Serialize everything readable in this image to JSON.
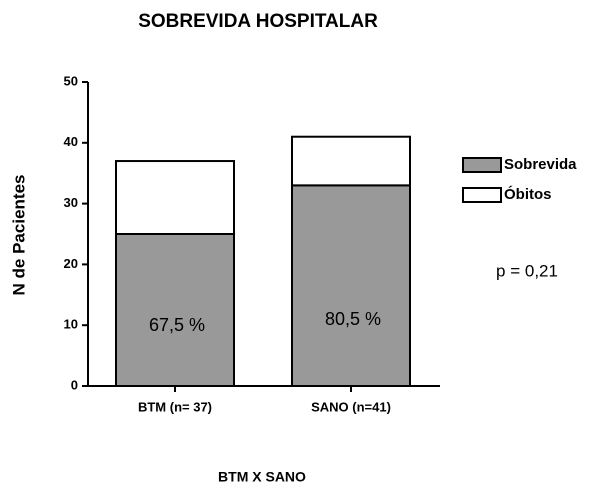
{
  "chart_data": {
    "type": "stacked_bar",
    "title": "SOBREVIDA HOSPITALAR",
    "x_label": "BTM X SANO",
    "y_label": "N de Pacientes",
    "categories": [
      "BTM (n= 37)",
      "SANO (n=41)"
    ],
    "series": [
      {
        "name": "Sobrevida",
        "color": "#999999",
        "values": [
          25,
          33
        ]
      },
      {
        "name": "Óbitos",
        "color": "#ffffff",
        "values": [
          12,
          8
        ]
      }
    ],
    "annotations": [
      "67,5 %",
      "80,5 %"
    ],
    "note": "p = 0,21",
    "ylim": [
      0,
      50
    ],
    "yticks": [
      0,
      10,
      20,
      30,
      40,
      50
    ],
    "legend": "right"
  }
}
